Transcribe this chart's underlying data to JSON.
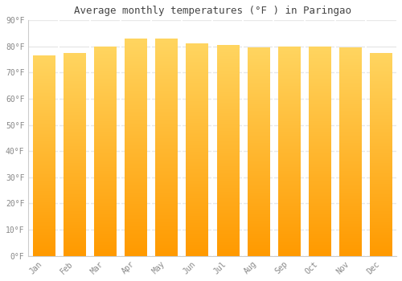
{
  "title": "Average monthly temperatures (°F ) in Paringao",
  "months": [
    "Jan",
    "Feb",
    "Mar",
    "Apr",
    "May",
    "Jun",
    "Jul",
    "Aug",
    "Sep",
    "Oct",
    "Nov",
    "Dec"
  ],
  "values": [
    76.5,
    77.5,
    80.0,
    83.0,
    83.0,
    81.0,
    80.5,
    79.5,
    80.0,
    80.0,
    79.5,
    77.5
  ],
  "bar_color_mid": "#FFAA00",
  "bar_color_top": "#FFD060",
  "bar_color_bottom": "#FF9500",
  "background_color": "#FFFFFF",
  "grid_color": "#E8E8E8",
  "tick_label_color": "#888888",
  "title_color": "#444444",
  "ylim": [
    0,
    90
  ],
  "yticks": [
    0,
    10,
    20,
    30,
    40,
    50,
    60,
    70,
    80,
    90
  ]
}
